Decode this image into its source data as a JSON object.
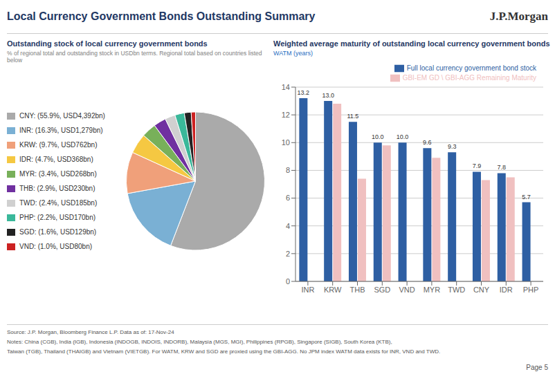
{
  "title": "Local Currency Government Bonds Outstanding Summary",
  "annotations": [
    "J.P.Morgan",
    "Source: J.P. Morgan, Bloomberg Finance L.P.  Data as of: 17-Nov-24",
    "Notes: China (CGB), India (IGB), Indonesia (INDOGB, INDOIS, INDORB), Malaysia (MGS, MGI), Philippines (RPGB), Singapore (SIGB), South Korea (KTB),",
    "Taiwan (TGB), Thailand (THAIGB) and Vietnam (VIETGB). For WATM, KRW and SGD are proxied using the GBI-AGG. No JPM index WATM data exists for INR, VND and TWD.",
    "Page 5"
  ],
  "chart_data": [
    {
      "type": "pie",
      "title": "Outstanding stock of local currency government bonds",
      "subtitle": "% of regional total and outstanding stock in USDbn terms. Regional total based on countries listed below",
      "categories": [
        "CNY: (55.9%, USD4,392bn)",
        "INR: (16.3%, USD1,279bn)",
        "KRW: (9.7%, USD762bn)",
        "IDR: (4.7%, USD368bn)",
        "MYR: (3.4%, USD268bn)",
        "THB: (2.9%, USD230bn)",
        "TWD: (2.4%, USD185bn)",
        "PHP: (2.2%, USD170bn)",
        "SGD: (1.6%, USD129bn)",
        "VND: (1.0%, USD80bn)"
      ],
      "values": [
        55.9,
        16.3,
        9.7,
        4.7,
        3.4,
        2.9,
        2.4,
        2.2,
        1.6,
        1.0
      ],
      "colors": [
        "#aaaaaa",
        "#7ab0d4",
        "#f0a07a",
        "#f5c842",
        "#78b05a",
        "#7030a0",
        "#d0d0d0",
        "#3ab89a",
        "#222222",
        "#cc2222"
      ],
      "legend": "left"
    },
    {
      "type": "bar",
      "title": "Weighted average maturity of outstanding local currency government bonds",
      "subtitle": "WATM (years)",
      "categories": [
        "INR",
        "KRW",
        "THB",
        "SGD",
        "VND",
        "MYR",
        "TWD",
        "CNY",
        "IDR",
        "PHP"
      ],
      "series": [
        {
          "name": "Full local currency government bond stock",
          "color": "#2e5fa3",
          "values": [
            13.2,
            13.0,
            11.5,
            10.0,
            10.0,
            9.6,
            9.3,
            7.9,
            7.8,
            5.7
          ],
          "data_labels": true,
          "value_labels": [
            "13.2",
            "13.0",
            "11.5",
            "10.0",
            "10.0",
            "9.6",
            "9.3",
            "7.9",
            "7.8",
            "5.7"
          ]
        },
        {
          "name": "GBI-EM GD \\ GBI-AGG Remaining Maturity",
          "color": "#f0c0c0",
          "values": [
            null,
            12.8,
            7.4,
            9.8,
            null,
            8.9,
            null,
            7.3,
            7.5,
            null
          ]
        }
      ],
      "ylim": [
        0,
        14
      ],
      "yticks": [
        0,
        2,
        4,
        6,
        8,
        10,
        12,
        14
      ],
      "grid": true,
      "legend": "upper right"
    }
  ]
}
